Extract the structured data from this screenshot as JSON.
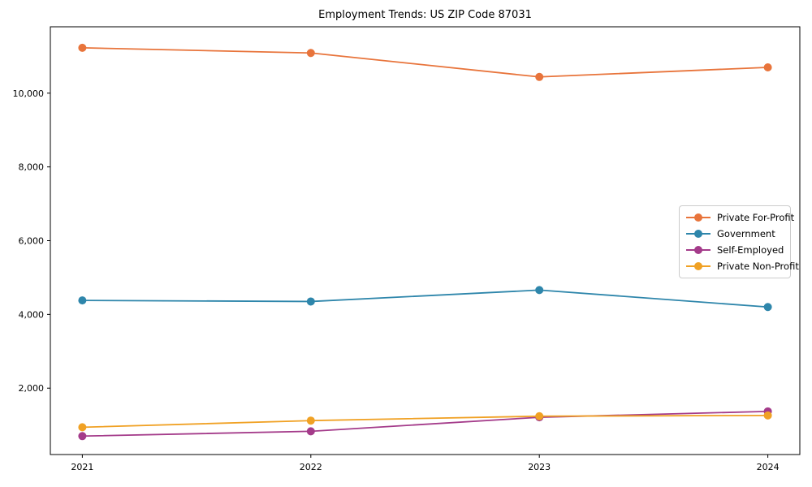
{
  "chart_data": {
    "type": "line",
    "title": "Employment Trends: US ZIP Code 87031",
    "x": [
      2021,
      2022,
      2023,
      2024
    ],
    "x_tick_labels": [
      "2021",
      "2022",
      "2023",
      "2024"
    ],
    "y_ticks": [
      2000,
      4000,
      6000,
      8000,
      10000
    ],
    "y_tick_labels": [
      "2,000",
      "4,000",
      "6,000",
      "8,000",
      "10,000"
    ],
    "xlim": [
      2020.86,
      2024.14
    ],
    "ylim": [
      200,
      11800
    ],
    "grid": false,
    "legend_position": "center right",
    "axis_color": "#000000",
    "series": [
      {
        "name": "Private For-Profit",
        "color": "#E8743B",
        "values": [
          11230,
          11090,
          10440,
          10700
        ]
      },
      {
        "name": "Government",
        "color": "#2E86AB",
        "values": [
          4380,
          4350,
          4660,
          4200
        ]
      },
      {
        "name": "Self-Employed",
        "color": "#A43B8A",
        "values": [
          700,
          830,
          1210,
          1370
        ]
      },
      {
        "name": "Private Non-Profit",
        "color": "#F0A124",
        "values": [
          940,
          1120,
          1240,
          1260
        ]
      }
    ]
  }
}
